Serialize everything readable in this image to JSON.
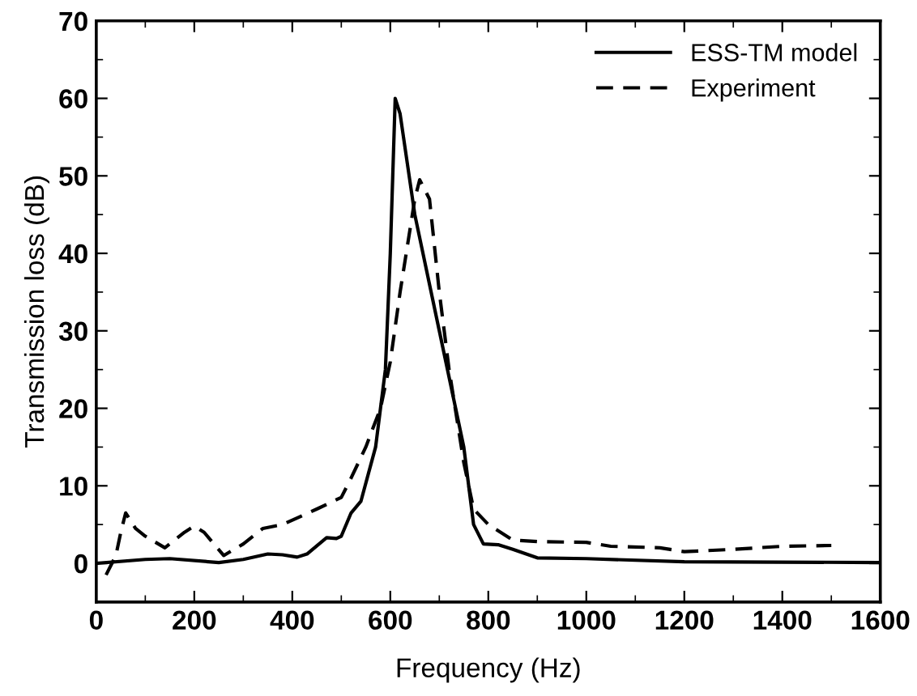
{
  "chart_data": {
    "type": "line",
    "xlabel": "Frequency (Hz)",
    "ylabel": "Transmission loss (dB)",
    "xlim": [
      0,
      1600
    ],
    "xticks": [
      0,
      200,
      400,
      600,
      800,
      1000,
      1200,
      1400,
      1600
    ],
    "ylim": [
      -5,
      70
    ],
    "yticks": [
      0,
      10,
      20,
      30,
      40,
      50,
      60,
      70
    ],
    "grid": false,
    "legend": "top right",
    "marker": "none",
    "series": [
      {
        "name": "ESS-TM model",
        "color": "#000000",
        "line_style": "solid",
        "x": [
          0,
          100,
          150,
          250,
          300,
          350,
          380,
          410,
          430,
          470,
          490,
          500,
          520,
          540,
          570,
          590,
          600,
          610,
          620,
          650,
          700,
          750,
          770,
          790,
          820,
          850,
          900,
          1000,
          1200,
          1600
        ],
        "values": [
          0,
          0.5,
          0.6,
          0.1,
          0.5,
          1.2,
          1.1,
          0.8,
          1.2,
          3.3,
          3.2,
          3.5,
          6.5,
          8,
          15,
          25,
          40,
          60,
          58,
          45,
          30,
          15,
          5,
          2.5,
          2.4,
          1.8,
          0.7,
          0.6,
          0.2,
          0.1
        ]
      },
      {
        "name": "Experiment",
        "color": "#000000",
        "line_style": "dashed",
        "x": [
          20,
          40,
          50,
          60,
          80,
          100,
          140,
          180,
          200,
          220,
          260,
          300,
          340,
          380,
          450,
          500,
          520,
          550,
          580,
          600,
          620,
          640,
          650,
          660,
          680,
          700,
          720,
          750,
          770,
          800,
          850,
          900,
          1000,
          1050,
          1150,
          1200,
          1300,
          1400,
          1500
        ],
        "values": [
          -1.5,
          1,
          4,
          6.5,
          4.5,
          3.5,
          2,
          4,
          4.8,
          4,
          1,
          2.5,
          4.5,
          5,
          7,
          8.5,
          11,
          15,
          20,
          26,
          35,
          43,
          47,
          49.5,
          47,
          35,
          25,
          13,
          7,
          5,
          3,
          2.8,
          2.7,
          2.2,
          2,
          1.5,
          1.8,
          2.2,
          2.3
        ]
      }
    ]
  }
}
